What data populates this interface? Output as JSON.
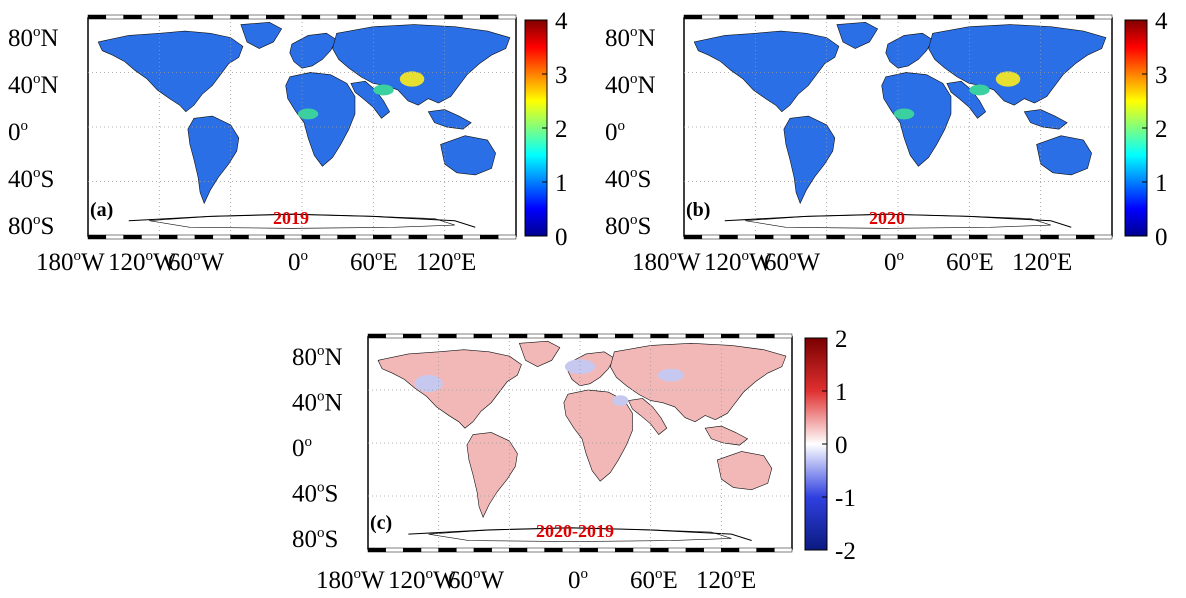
{
  "figure": {
    "panels": [
      {
        "id": "a",
        "panel_label": "(a)",
        "year_label": "2019",
        "colormap": "jet",
        "colorbar_ticks": [
          "4",
          "3",
          "2",
          "1",
          "0"
        ],
        "colorbar_range": [
          0,
          4
        ]
      },
      {
        "id": "b",
        "panel_label": "(b)",
        "year_label": "2020",
        "colormap": "jet",
        "colorbar_ticks": [
          "4",
          "3",
          "2",
          "1",
          "0"
        ],
        "colorbar_range": [
          0,
          4
        ]
      },
      {
        "id": "c",
        "panel_label": "(c)",
        "year_label": "2020-2019",
        "colormap": "diverging-blue-white-red",
        "colorbar_ticks": [
          "2",
          "1",
          "0",
          "-1",
          "-2"
        ],
        "colorbar_range": [
          -2,
          2
        ]
      }
    ],
    "lat_ticks": [
      {
        "num": "80",
        "sup": "o",
        "hem": "N"
      },
      {
        "num": "40",
        "sup": "o",
        "hem": "N"
      },
      {
        "num": "0",
        "sup": "o",
        "hem": ""
      },
      {
        "num": "40",
        "sup": "o",
        "hem": "S"
      },
      {
        "num": "80",
        "sup": "o",
        "hem": "S"
      }
    ],
    "lon_ticks": [
      {
        "num": "180",
        "sup": "o",
        "hem": "W"
      },
      {
        "num": "120",
        "sup": "o",
        "hem": "W"
      },
      {
        "num": "60",
        "sup": "o",
        "hem": "W"
      },
      {
        "num": "0",
        "sup": "o",
        "hem": ""
      },
      {
        "num": "60",
        "sup": "o",
        "hem": "E"
      },
      {
        "num": "120",
        "sup": "o",
        "hem": "E"
      }
    ],
    "colors": {
      "land_a": "#2a6fe6",
      "land_b": "#2a6fe6",
      "land_c": "#f2b8b8",
      "land_c_blue": "#c7c8f0",
      "hotspot_yellow": "#e8e030",
      "hotspot_green": "#3ad0a0",
      "grid": "#9a9a9a",
      "year_text": "#e00000"
    }
  }
}
